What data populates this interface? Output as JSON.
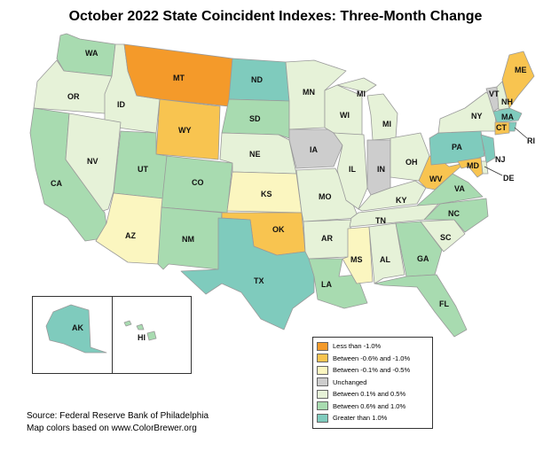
{
  "title": "October 2022 State Coincident Indexes: Three-Month Change",
  "colors": {
    "less_than_1": "#f49a2a",
    "neg06_neg10": "#f8c450",
    "neg01_neg05": "#fbf6c0",
    "unchanged": "#cdcdcd",
    "pos01_05": "#e6f2d8",
    "pos06_10": "#a8dbb0",
    "gt1": "#7fcbbd",
    "border": "#9a9a9a"
  },
  "legend": {
    "items": [
      {
        "label": "Less than -1.0%",
        "color": "#f49a2a"
      },
      {
        "label": "Between -0.6% and -1.0%",
        "color": "#f8c450"
      },
      {
        "label": "Between -0.1% and -0.5%",
        "color": "#fbf6c0"
      },
      {
        "label": "Unchanged",
        "color": "#cdcdcd"
      },
      {
        "label": "Between 0.1% and 0.5%",
        "color": "#e6f2d8"
      },
      {
        "label": "Between 0.6% and 1.0%",
        "color": "#a8dbb0"
      },
      {
        "label": "Greater than 1.0%",
        "color": "#7fcbbd"
      }
    ]
  },
  "states": {
    "WA": "WA",
    "OR": "OR",
    "CA": "CA",
    "ID": "ID",
    "NV": "NV",
    "MT": "MT",
    "WY": "WY",
    "UT": "UT",
    "AZ": "AZ",
    "CO": "CO",
    "NM": "NM",
    "ND": "ND",
    "SD": "SD",
    "NE": "NE",
    "KS": "KS",
    "OK": "OK",
    "TX": "TX",
    "MN": "MN",
    "IA": "IA",
    "MO": "MO",
    "AR": "AR",
    "LA": "LA",
    "WI": "WI",
    "IL": "IL",
    "MS": "MS",
    "MI": "MI",
    "IN": "IN",
    "OH": "OH",
    "KY": "KY",
    "TN": "TN",
    "AL": "AL",
    "GA": "GA",
    "FL": "FL",
    "SC": "SC",
    "NC": "NC",
    "VA": "VA",
    "WV": "WV",
    "PA": "PA",
    "NY": "NY",
    "VT": "VT",
    "NH": "NH",
    "ME": "ME",
    "MA": "MA",
    "CT": "CT",
    "RI": "RI",
    "NJ": "NJ",
    "DE": "DE",
    "MD": "MD",
    "AK": "AK",
    "HI": "HI"
  },
  "source": "Source: Federal Reserve Bank of Philadelphia",
  "credit": "Map colors based on www.ColorBrewer.org"
}
